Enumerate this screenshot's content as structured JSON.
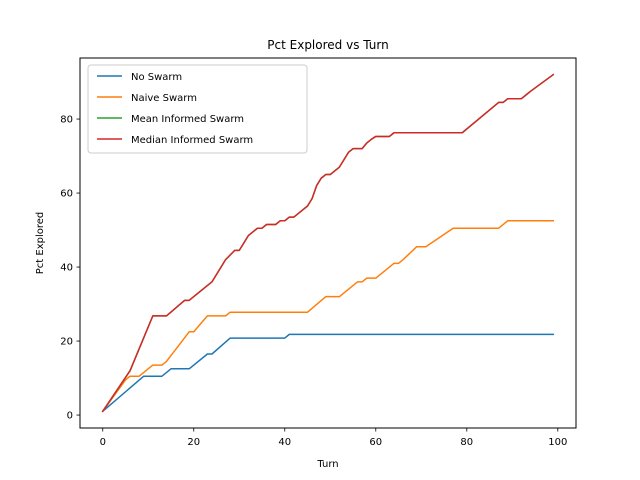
{
  "chart_data": {
    "type": "line",
    "title": "Pct Explored vs Turn",
    "xlabel": "Turn",
    "ylabel": "Pct Explored",
    "xlim": [
      -5,
      104
    ],
    "ylim": [
      -3.5,
      96.5
    ],
    "xticks": [
      0,
      20,
      40,
      60,
      80,
      100
    ],
    "yticks": [
      0,
      20,
      40,
      60,
      80
    ],
    "grid": false,
    "legend_position": "top-left",
    "series": [
      {
        "name": "No Swarm",
        "color": "#1f77b4",
        "x": [
          0,
          9,
          13,
          15,
          19,
          23,
          24,
          28,
          40,
          41,
          99
        ],
        "y": [
          1,
          10.5,
          10.5,
          12.5,
          12.5,
          16.5,
          16.5,
          20.8,
          20.8,
          21.8,
          21.8
        ]
      },
      {
        "name": "Naive Swarm",
        "color": "#ff7f0e",
        "x": [
          0,
          5,
          6,
          8,
          11,
          13,
          14,
          19,
          20,
          23,
          27,
          28,
          45,
          49,
          52,
          56,
          57,
          58,
          60,
          64,
          65,
          66,
          69,
          71,
          77,
          87,
          89,
          90,
          99
        ],
        "y": [
          1,
          9.5,
          10.5,
          10.5,
          13.5,
          13.5,
          14.5,
          22.5,
          22.5,
          26.8,
          26.8,
          27.8,
          27.8,
          32,
          32,
          36,
          36,
          37,
          37,
          41,
          41,
          42,
          45.5,
          45.5,
          50.5,
          50.5,
          52.5,
          52.5,
          52.5
        ]
      },
      {
        "name": "Mean Informed Swarm",
        "color": "#2ca02c",
        "x": [
          0,
          6,
          11,
          14,
          18,
          19,
          24,
          27,
          29,
          30,
          32,
          34,
          35,
          36,
          38,
          39,
          40,
          41,
          42,
          43,
          44,
          45,
          46,
          47,
          48,
          49,
          50,
          51,
          52,
          53,
          54,
          55,
          56,
          57,
          58,
          59,
          60,
          61,
          62,
          63,
          64,
          79,
          87,
          88,
          89,
          90,
          92,
          93,
          94,
          99
        ],
        "y": [
          1,
          12,
          26.8,
          26.8,
          31,
          31,
          36,
          42,
          44.5,
          44.5,
          48.5,
          50.5,
          50.5,
          51.5,
          51.5,
          52.5,
          52.5,
          53.5,
          53.5,
          54.5,
          55.5,
          56.5,
          58.5,
          62,
          64,
          65,
          65,
          66,
          67,
          69,
          71,
          72,
          72,
          72,
          73.5,
          74.5,
          75.3,
          75.3,
          75.3,
          75.3,
          76.3,
          76.3,
          84.5,
          84.5,
          85.5,
          85.5,
          85.5,
          86.5,
          87.5,
          92
        ]
      },
      {
        "name": "Median Informed Swarm",
        "color": "#d62728",
        "x": [
          0,
          6,
          11,
          14,
          18,
          19,
          24,
          27,
          29,
          30,
          32,
          34,
          35,
          36,
          38,
          39,
          40,
          41,
          42,
          43,
          44,
          45,
          46,
          47,
          48,
          49,
          50,
          51,
          52,
          53,
          54,
          55,
          56,
          57,
          58,
          59,
          60,
          61,
          62,
          63,
          64,
          79,
          87,
          88,
          89,
          90,
          92,
          93,
          94,
          99
        ],
        "y": [
          1,
          12,
          26.8,
          26.8,
          31,
          31,
          36,
          42,
          44.5,
          44.5,
          48.5,
          50.5,
          50.5,
          51.5,
          51.5,
          52.5,
          52.5,
          53.5,
          53.5,
          54.5,
          55.5,
          56.5,
          58.5,
          62,
          64,
          65,
          65,
          66,
          67,
          69,
          71,
          72,
          72,
          72,
          73.5,
          74.5,
          75.3,
          75.3,
          75.3,
          75.3,
          76.3,
          76.3,
          84.5,
          84.5,
          85.5,
          85.5,
          85.5,
          86.5,
          87.5,
          92
        ]
      }
    ]
  }
}
